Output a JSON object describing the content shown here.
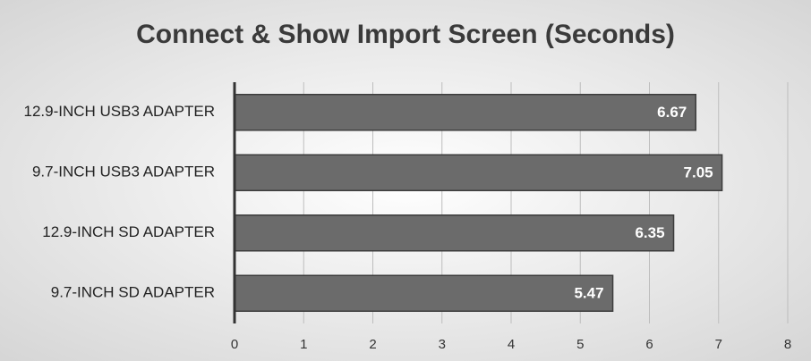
{
  "chart_data": {
    "type": "bar",
    "orientation": "horizontal",
    "title": "Connect & Show Import Screen (Seconds)",
    "categories": [
      "12.9-INCH USB3 ADAPTER",
      "9.7-INCH USB3 ADAPTER",
      "12.9-INCH SD ADAPTER",
      "9.7-INCH SD ADAPTER"
    ],
    "values": [
      6.67,
      7.05,
      6.35,
      5.47
    ],
    "color": "#6b6b6b",
    "xlim": [
      0,
      8
    ],
    "xticks": [
      0,
      1,
      2,
      3,
      4,
      5,
      6,
      7,
      8
    ],
    "grid": true
  }
}
